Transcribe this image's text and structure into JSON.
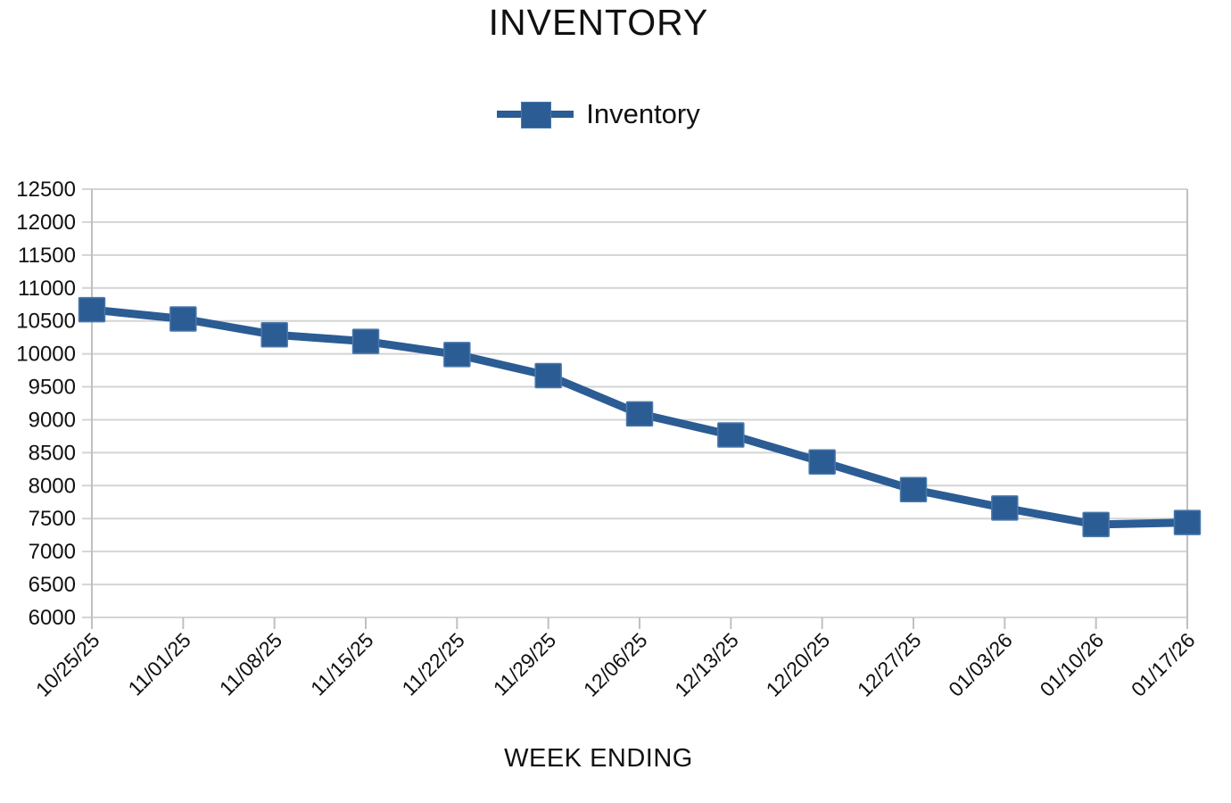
{
  "chart_data": {
    "type": "line",
    "title": "INVENTORY",
    "xlabel": "WEEK ENDING",
    "ylabel": "",
    "categories": [
      "10/25/25",
      "11/01/25",
      "11/08/25",
      "11/15/25",
      "11/22/25",
      "11/29/25",
      "12/06/25",
      "12/13/25",
      "12/20/25",
      "12/27/25",
      "01/03/26",
      "01/10/26",
      "01/17/26"
    ],
    "series": [
      {
        "name": "Inventory",
        "values": [
          10670,
          10530,
          10290,
          10190,
          9990,
          9670,
          9090,
          8770,
          8360,
          7940,
          7660,
          7410,
          7440
        ]
      }
    ],
    "ylim": [
      6000,
      12500
    ],
    "ytick_step": 500,
    "grid": "horizontal-only",
    "legend_position": "top-center",
    "colors": {
      "line": "#2b5c94",
      "marker": "#2b5c94",
      "marker_edge": "#4a79ab",
      "gridline": "#d4d4d4",
      "axis": "#c0c0c0",
      "text": "#111111"
    }
  }
}
